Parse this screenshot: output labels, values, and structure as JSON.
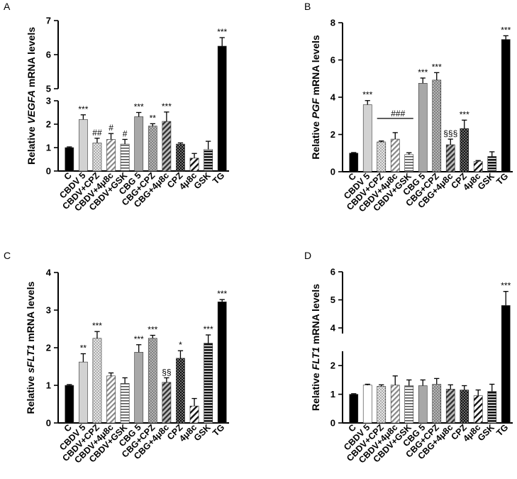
{
  "colors": {
    "black": "#000000",
    "light_gray": "#d2d2d2",
    "mid_gray": "#a8a8a8",
    "dark_gray": "#707070",
    "white": "#ffffff"
  },
  "chart_data": [
    {
      "panel": "A",
      "type": "bar",
      "ylabel_parts": [
        "Relative ",
        "VEGFA",
        " mRNA levels"
      ],
      "categories": [
        "C",
        "CBDV 5",
        "CBDV+CPZ",
        "CBDV+4μ8c",
        "CBDV+GSK",
        "CBG 5",
        "CBG+CPZ",
        "CBG+4μ8c",
        "CPZ",
        "4μ8c",
        "GSK",
        "TG"
      ],
      "values": [
        1.0,
        2.2,
        1.2,
        1.35,
        1.15,
        2.32,
        1.92,
        2.12,
        1.15,
        0.55,
        0.92,
        6.25
      ],
      "errors": [
        0.03,
        0.2,
        0.2,
        0.25,
        0.2,
        0.18,
        0.1,
        0.4,
        0.05,
        0.2,
        0.35,
        0.25
      ],
      "annotations": [
        "",
        "***",
        "##",
        "#",
        "#",
        "***",
        "**",
        "***",
        "",
        "",
        "",
        "***"
      ],
      "axis_break": [
        3,
        5
      ],
      "ylim": [
        0,
        7
      ],
      "yticks": [
        0,
        1,
        2,
        3,
        5,
        6,
        7
      ],
      "fills": [
        "black",
        "light_gray",
        "dots",
        "diag",
        "hlines",
        "mid_gray",
        "dots_gray",
        "diag_dark",
        "dots_black",
        "diag_sparse",
        "hlines_black",
        "black"
      ]
    },
    {
      "panel": "B",
      "type": "bar",
      "ylabel_parts": [
        "Relative ",
        "PGF",
        " mRNA levels"
      ],
      "categories": [
        "C",
        "CBDV 5",
        "CBDV+CPZ",
        "CBDV+4μ8c",
        "CBDV+GSK",
        "CBG 5",
        "CBG+CPZ",
        "CBG+4μ8c",
        "CPZ",
        "4μ8c",
        "GSK",
        "TG"
      ],
      "values": [
        1.0,
        3.6,
        1.6,
        1.75,
        0.92,
        4.75,
        4.92,
        1.45,
        2.32,
        0.55,
        0.82,
        7.1
      ],
      "errors": [
        0.03,
        0.22,
        0.05,
        0.35,
        0.1,
        0.28,
        0.4,
        0.3,
        0.45,
        0.05,
        0.25,
        0.2
      ],
      "annotations": [
        "",
        "***",
        "",
        "",
        "",
        "***",
        "***",
        "§§§",
        "***",
        "",
        "",
        "***"
      ],
      "bracket": {
        "from": 2,
        "to": 4,
        "label": "###"
      },
      "ylim": [
        0,
        8
      ],
      "yticks": [
        0,
        2,
        4,
        6,
        8
      ],
      "fills": [
        "black",
        "light_gray",
        "dots",
        "diag",
        "hlines",
        "mid_gray",
        "dots_gray",
        "diag_dark",
        "dots_black",
        "diag_sparse",
        "hlines_black",
        "black"
      ]
    },
    {
      "panel": "C",
      "type": "bar",
      "ylabel_parts": [
        "Relative ",
        "sFLT1",
        " mRNA levels"
      ],
      "categories": [
        "C",
        "CBDV 5",
        "CBDV+CPZ",
        "CBDV+4μ8c",
        "CBDV+GSK",
        "CBG 5",
        "CBG+CPZ",
        "CBG+4μ8c",
        "CPZ",
        "4μ8c",
        "GSK",
        "TG"
      ],
      "values": [
        1.0,
        1.62,
        2.25,
        1.25,
        1.05,
        1.88,
        2.25,
        1.08,
        1.72,
        0.45,
        2.12,
        3.22
      ],
      "errors": [
        0.02,
        0.22,
        0.18,
        0.08,
        0.15,
        0.2,
        0.08,
        0.12,
        0.2,
        0.2,
        0.22,
        0.06
      ],
      "annotations": [
        "",
        "**",
        "***",
        "",
        "",
        "***",
        "***",
        "§§",
        "*",
        "",
        "***",
        "***"
      ],
      "ylim": [
        0,
        4
      ],
      "yticks": [
        0,
        1,
        2,
        3,
        4
      ],
      "fills": [
        "black",
        "light_gray",
        "dots",
        "diag",
        "hlines",
        "mid_gray",
        "dots_gray",
        "diag_dark",
        "dots_black",
        "diag_sparse",
        "hlines_black",
        "black"
      ]
    },
    {
      "panel": "D",
      "type": "bar",
      "ylabel_parts": [
        "Relative ",
        "FLT1",
        " mRNA levels"
      ],
      "categories": [
        "C",
        "CBDV 5",
        "CBDV+CPZ",
        "CBDV+4μ8c",
        "CBDV+GSK",
        "CBG 5",
        "CBG+CPZ",
        "CBG+4μ8c",
        "CPZ",
        "4μ8c",
        "GSK",
        "TG"
      ],
      "values": [
        1.0,
        1.32,
        1.28,
        1.32,
        1.3,
        1.3,
        1.35,
        1.18,
        1.15,
        0.95,
        1.1,
        4.8
      ],
      "errors": [
        0.02,
        0.03,
        0.05,
        0.32,
        0.2,
        0.2,
        0.2,
        0.15,
        0.15,
        0.2,
        0.25,
        0.5
      ],
      "annotations": [
        "",
        "",
        "",
        "",
        "",
        "",
        "",
        "",
        "",
        "",
        "",
        "***"
      ],
      "axis_break": [
        2.5,
        3.8
      ],
      "ylim": [
        0,
        6
      ],
      "yticks": [
        0,
        1,
        2,
        4,
        5,
        6
      ],
      "fills": [
        "black",
        "white",
        "dots",
        "diag",
        "hlines",
        "mid_gray",
        "dots_gray",
        "diag_dark",
        "dots_black",
        "diag_sparse",
        "hlines_black",
        "black"
      ]
    }
  ]
}
